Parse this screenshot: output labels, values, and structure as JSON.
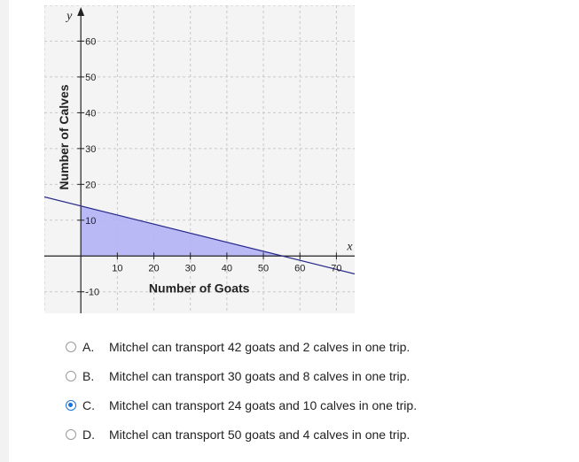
{
  "graph": {
    "y_var": "y",
    "x_var": "x",
    "xlabel": "Number of Goats",
    "ylabel": "Number of Calves"
  },
  "chart_data": {
    "type": "area",
    "title": "",
    "xlabel": "Number of Goats",
    "ylabel": "Number of Calves",
    "xlim": [
      -10,
      75
    ],
    "ylim": [
      -16,
      70
    ],
    "x_ticks": [
      10,
      20,
      30,
      40,
      50,
      60,
      70
    ],
    "y_ticks": [
      -10,
      10,
      20,
      30,
      40,
      50,
      60
    ],
    "grid": true,
    "boundary_line": {
      "points": [
        [
          -10,
          16.5
        ],
        [
          75,
          -5
        ],
        [
          0,
          14
        ],
        [
          56,
          0
        ]
      ]
    },
    "shaded_region": {
      "vertices": [
        [
          0,
          0
        ],
        [
          0,
          14
        ],
        [
          56,
          0
        ]
      ],
      "color": "#b3b3f5"
    }
  },
  "options": [
    {
      "letter": "A.",
      "text": "Mitchel can transport 42 goats and 2 calves in one trip.",
      "selected": false
    },
    {
      "letter": "B.",
      "text": "Mitchel can transport 30 goats and 8 calves in one trip.",
      "selected": false
    },
    {
      "letter": "C.",
      "text": "Mitchel can transport 24 goats and 10 calves in one trip.",
      "selected": true
    },
    {
      "letter": "D.",
      "text": "Mitchel can transport 50 goats and 4 calves in one trip.",
      "selected": false
    }
  ],
  "colors": {
    "accent": "#1a73d9",
    "shade": "#b3b3f5",
    "grid": "#c8c8c8"
  }
}
